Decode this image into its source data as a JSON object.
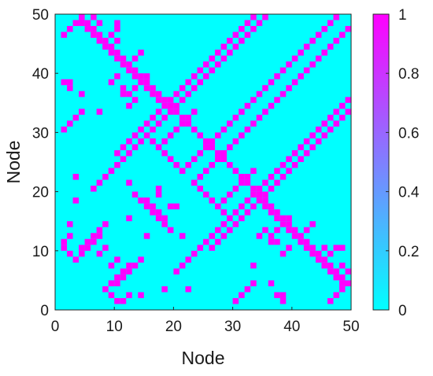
{
  "chart_data": {
    "type": "heatmap",
    "title": "",
    "xlabel": "Node",
    "ylabel": "Node",
    "xlim": [
      0,
      50
    ],
    "ylim": [
      0,
      50
    ],
    "x_ticks": [
      "0",
      "10",
      "20",
      "30",
      "40",
      "50"
    ],
    "y_ticks": [
      "0",
      "10",
      "20",
      "30",
      "40",
      "50"
    ],
    "colorbar": {
      "range": [
        0,
        1
      ],
      "ticks": [
        "0",
        "0.2",
        "0.4",
        "0.6",
        "0.8",
        "1"
      ],
      "colormap": "cool",
      "low_color": "#00ffff",
      "high_color": "#ff00ff"
    },
    "background_value": 0,
    "cells_value_1": [
      [
        8,
        3
      ],
      [
        9,
        2
      ],
      [
        10,
        1
      ],
      [
        11,
        1
      ],
      [
        12,
        2
      ],
      [
        10,
        4
      ],
      [
        11,
        5
      ],
      [
        12,
        6
      ],
      [
        13,
        7
      ],
      [
        14,
        8
      ],
      [
        9,
        7
      ],
      [
        10,
        8
      ],
      [
        5,
        10
      ],
      [
        6,
        11
      ],
      [
        7,
        12
      ],
      [
        4,
        9
      ],
      [
        3,
        18
      ],
      [
        2,
        14
      ],
      [
        1,
        30
      ],
      [
        2,
        31
      ],
      [
        3,
        32
      ],
      [
        4,
        33
      ],
      [
        1,
        38
      ],
      [
        2,
        38
      ],
      [
        17,
        15
      ],
      [
        18,
        15
      ],
      [
        16,
        16
      ],
      [
        17,
        16
      ],
      [
        18,
        14
      ],
      [
        19,
        17
      ],
      [
        20,
        17
      ],
      [
        19,
        13
      ],
      [
        15,
        12
      ],
      [
        21,
        12
      ],
      [
        22,
        3
      ],
      [
        30,
        1
      ],
      [
        31,
        2
      ],
      [
        37,
        2
      ],
      [
        33,
        7
      ],
      [
        36,
        4
      ],
      [
        44,
        8
      ],
      [
        45,
        8
      ],
      [
        46,
        9
      ],
      [
        47,
        10
      ],
      [
        48,
        10
      ],
      [
        45,
        10
      ],
      [
        47,
        6
      ],
      [
        48,
        7
      ],
      [
        49,
        6
      ],
      [
        42,
        13
      ],
      [
        43,
        14
      ],
      [
        40,
        12
      ],
      [
        41,
        11
      ],
      [
        39,
        10
      ],
      [
        38,
        9
      ],
      [
        36,
        12
      ],
      [
        37,
        13
      ],
      [
        38,
        14
      ],
      [
        39,
        15
      ],
      [
        34,
        12
      ],
      [
        35,
        13
      ],
      [
        36,
        11
      ],
      [
        37,
        11
      ],
      [
        30,
        14
      ],
      [
        29,
        15
      ],
      [
        28,
        16
      ],
      [
        27,
        17
      ],
      [
        28,
        18
      ],
      [
        29,
        19
      ],
      [
        30,
        20
      ],
      [
        31,
        21
      ],
      [
        32,
        22
      ],
      [
        33,
        23
      ],
      [
        26,
        18
      ],
      [
        25,
        19
      ],
      [
        24,
        20
      ],
      [
        23,
        21
      ],
      [
        24,
        22
      ],
      [
        25,
        23
      ],
      [
        26,
        24
      ],
      [
        27,
        25
      ],
      [
        28,
        26
      ],
      [
        29,
        27
      ],
      [
        30,
        28
      ],
      [
        31,
        29
      ],
      [
        32,
        30
      ],
      [
        33,
        31
      ],
      [
        34,
        32
      ],
      [
        35,
        33
      ],
      [
        36,
        34
      ],
      [
        37,
        35
      ],
      [
        38,
        36
      ],
      [
        39,
        37
      ],
      [
        40,
        38
      ],
      [
        41,
        39
      ],
      [
        42,
        40
      ],
      [
        43,
        41
      ],
      [
        44,
        42
      ],
      [
        45,
        43
      ],
      [
        46,
        44
      ],
      [
        47,
        45
      ],
      [
        48,
        46
      ],
      [
        49,
        47
      ],
      [
        10,
        26
      ],
      [
        11,
        27
      ],
      [
        12,
        28
      ],
      [
        13,
        29
      ],
      [
        14,
        30
      ],
      [
        15,
        31
      ],
      [
        16,
        32
      ],
      [
        17,
        33
      ],
      [
        18,
        34
      ],
      [
        19,
        35
      ],
      [
        20,
        36
      ],
      [
        21,
        37
      ],
      [
        22,
        38
      ],
      [
        23,
        39
      ],
      [
        24,
        40
      ],
      [
        25,
        41
      ],
      [
        26,
        42
      ],
      [
        27,
        43
      ],
      [
        28,
        44
      ],
      [
        29,
        45
      ],
      [
        30,
        46
      ],
      [
        31,
        47
      ],
      [
        32,
        48
      ],
      [
        33,
        49
      ],
      [
        20,
        6
      ],
      [
        21,
        7
      ],
      [
        22,
        8
      ],
      [
        23,
        9
      ],
      [
        24,
        10
      ],
      [
        25,
        11
      ],
      [
        26,
        12
      ],
      [
        27,
        13
      ],
      [
        28,
        14
      ],
      [
        29,
        15
      ],
      [
        30,
        16
      ],
      [
        31,
        17
      ],
      [
        32,
        18
      ],
      [
        33,
        19
      ],
      [
        34,
        20
      ],
      [
        35,
        21
      ],
      [
        36,
        22
      ],
      [
        37,
        23
      ],
      [
        38,
        24
      ],
      [
        39,
        25
      ],
      [
        40,
        26
      ],
      [
        41,
        27
      ],
      [
        42,
        28
      ],
      [
        43,
        29
      ],
      [
        44,
        30
      ],
      [
        45,
        31
      ],
      [
        46,
        32
      ],
      [
        47,
        33
      ],
      [
        48,
        34
      ],
      [
        49,
        35
      ],
      [
        12,
        41
      ],
      [
        13,
        40
      ],
      [
        14,
        39
      ],
      [
        15,
        38
      ],
      [
        16,
        37
      ],
      [
        17,
        36
      ],
      [
        18,
        35
      ],
      [
        19,
        34
      ],
      [
        20,
        33
      ],
      [
        21,
        32
      ],
      [
        22,
        31
      ],
      [
        23,
        30
      ],
      [
        24,
        29
      ],
      [
        25,
        28
      ],
      [
        26,
        27
      ],
      [
        27,
        26
      ],
      [
        28,
        25
      ],
      [
        29,
        24
      ],
      [
        30,
        23
      ],
      [
        31,
        22
      ],
      [
        32,
        21
      ],
      [
        33,
        20
      ],
      [
        34,
        19
      ],
      [
        35,
        18
      ],
      [
        36,
        17
      ],
      [
        37,
        16
      ],
      [
        38,
        15
      ],
      [
        39,
        14
      ],
      [
        40,
        13
      ],
      [
        41,
        12
      ],
      [
        42,
        11
      ],
      [
        43,
        10
      ],
      [
        44,
        9
      ],
      [
        45,
        8
      ],
      [
        46,
        7
      ],
      [
        47,
        6
      ],
      [
        48,
        5
      ],
      [
        49,
        4
      ],
      [
        1,
        46
      ],
      [
        2,
        47
      ],
      [
        3,
        48
      ],
      [
        4,
        48
      ],
      [
        5,
        47
      ],
      [
        6,
        46
      ],
      [
        7,
        45
      ],
      [
        8,
        44
      ],
      [
        9,
        43
      ],
      [
        10,
        42
      ],
      [
        11,
        41
      ],
      [
        12,
        40
      ],
      [
        13,
        39
      ],
      [
        14,
        38
      ],
      [
        15,
        37
      ],
      [
        16,
        36
      ],
      [
        17,
        35
      ],
      [
        18,
        34
      ],
      [
        19,
        33
      ]
    ]
  }
}
